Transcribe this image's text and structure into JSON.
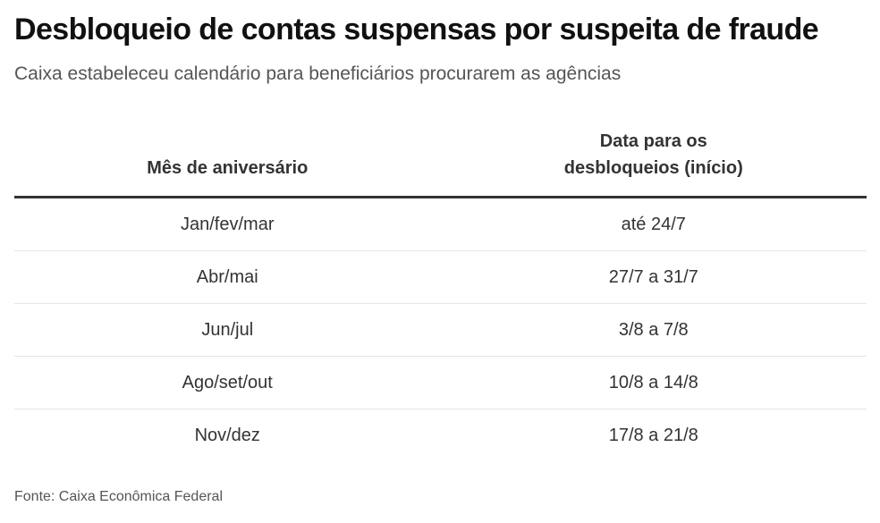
{
  "header": {
    "title": "Desbloqueio de contas suspensas por suspeita de fraude",
    "subtitle": "Caixa estabeleceu calendário para beneficiários procurarem as agências"
  },
  "table": {
    "columns": [
      "Mês de aniversário",
      "Data para os desbloqueios (início)"
    ],
    "column_lines": [
      [
        "Mês de aniversário"
      ],
      [
        "Data para os",
        "desbloqueios (início)"
      ]
    ],
    "rows": [
      [
        "Jan/fev/mar",
        "até 24/7"
      ],
      [
        "Abr/mai",
        "27/7 a 31/7"
      ],
      [
        "Jun/jul",
        "3/8 a 7/8"
      ],
      [
        "Ago/set/out",
        "10/8 a 14/8"
      ],
      [
        "Nov/dez",
        "17/8 a 21/8"
      ]
    ]
  },
  "footer": {
    "source": "Fonte: Caixa Econômica Federal"
  },
  "chart_data": {
    "type": "table",
    "title": "Desbloqueio de contas suspensas por suspeita de fraude",
    "subtitle": "Caixa estabeleceu calendário para beneficiários procurarem as agências",
    "columns": [
      "Mês de aniversário",
      "Data para os desbloqueios (início)"
    ],
    "rows": [
      [
        "Jan/fev/mar",
        "até 24/7"
      ],
      [
        "Abr/mai",
        "27/7 a 31/7"
      ],
      [
        "Jun/jul",
        "3/8 a 7/8"
      ],
      [
        "Ago/set/out",
        "10/8 a 14/8"
      ],
      [
        "Nov/dez",
        "17/8 a 21/8"
      ]
    ],
    "source": "Fonte: Caixa Econômica Federal"
  }
}
